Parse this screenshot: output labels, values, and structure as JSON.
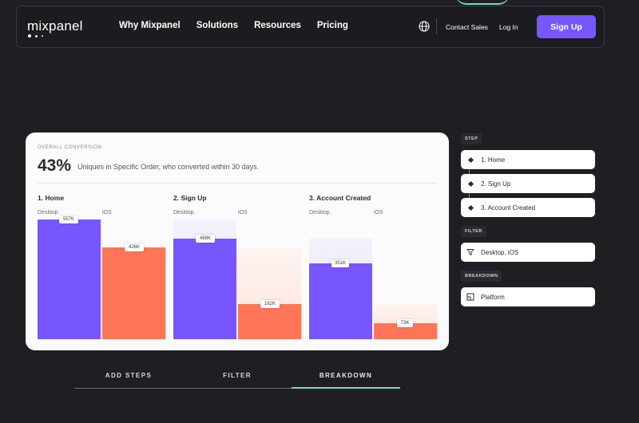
{
  "nav": {
    "logo": "mixpanel",
    "links": [
      "Why Mixpanel",
      "Solutions",
      "Resources",
      "Pricing"
    ],
    "contact_sales": "Contact Sales",
    "log_in": "Log In",
    "sign_up": "Sign Up"
  },
  "card": {
    "overall_label": "OVERALL CONVERSION",
    "overall_value": "43%",
    "overall_desc": "Uniques in Specific Order, who converted within 30 days.",
    "steps": [
      {
        "title": "1. Home",
        "desktop_label": "Desktop",
        "ios_label": "iOS",
        "desktop_value": "557K",
        "ios_value": "426K",
        "desktop_count": 557,
        "ios_count": 426
      },
      {
        "title": "2. Sign Up",
        "desktop_label": "Desktop",
        "ios_label": "iOS",
        "desktop_value": "468K",
        "ios_value": "162K",
        "desktop_count": 468,
        "ios_count": 162
      },
      {
        "title": "3. Account Created",
        "desktop_label": "Desktop",
        "ios_label": "iOS",
        "desktop_value": "351K",
        "ios_value": "73K",
        "desktop_count": 351,
        "ios_count": 73
      }
    ],
    "colors": {
      "desktop": "#7856ff",
      "ios": "#ff7557"
    }
  },
  "sidebar": {
    "step_label": "STEP",
    "steps": [
      "1. Home",
      "2. Sign Up",
      "3. Account Created"
    ],
    "filter_label": "FILTER",
    "filter_value": "Desktop, iOS",
    "breakdown_label": "BREAKDOWN",
    "breakdown_value": "Platform"
  },
  "tabs": {
    "items": [
      "ADD STEPS",
      "FILTER",
      "BREAKDOWN"
    ],
    "active": "BREAKDOWN"
  }
}
